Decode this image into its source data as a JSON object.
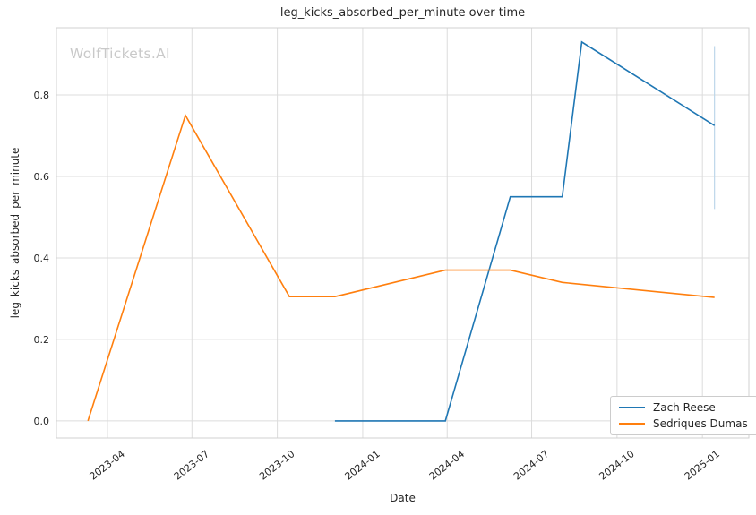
{
  "watermark": "WolfTickets.AI",
  "chart_data": {
    "type": "line",
    "title": "leg_kicks_absorbed_per_minute over time",
    "xlabel": "Date",
    "ylabel": "leg_kicks_absorbed_per_minute",
    "grid": true,
    "xlim": [
      "2023-02-05",
      "2025-02-20"
    ],
    "ylim": [
      -0.042,
      0.965
    ],
    "x_ticks": [
      {
        "label": "2023-04",
        "date": "2023-04-01"
      },
      {
        "label": "2023-07",
        "date": "2023-07-01"
      },
      {
        "label": "2023-10",
        "date": "2023-10-01"
      },
      {
        "label": "2024-01",
        "date": "2024-01-01"
      },
      {
        "label": "2024-04",
        "date": "2024-04-01"
      },
      {
        "label": "2024-07",
        "date": "2024-07-01"
      },
      {
        "label": "2024-10",
        "date": "2024-10-01"
      },
      {
        "label": "2025-01",
        "date": "2025-01-01"
      }
    ],
    "y_ticks": [
      0.0,
      0.2,
      0.4,
      0.6,
      0.8
    ],
    "y_tick_labels": [
      "0.0",
      "0.2",
      "0.4",
      "0.6",
      "0.8"
    ],
    "series": [
      {
        "name": "Zach Reese",
        "color": "#1f77b4",
        "points": [
          [
            "2023-12-02",
            0.0
          ],
          [
            "2024-03-30",
            0.0
          ],
          [
            "2024-06-08",
            0.55
          ],
          [
            "2024-08-03",
            0.55
          ],
          [
            "2024-08-24",
            0.93
          ],
          [
            "2025-01-14",
            0.725
          ]
        ]
      },
      {
        "name": "Sedriques Dumas",
        "color": "#ff7f0e",
        "points": [
          [
            "2023-03-11",
            0.0
          ],
          [
            "2023-06-24",
            0.75
          ],
          [
            "2023-10-14",
            0.305
          ],
          [
            "2023-12-02",
            0.305
          ],
          [
            "2024-03-30",
            0.37
          ],
          [
            "2024-06-08",
            0.37
          ],
          [
            "2024-08-03",
            0.34
          ],
          [
            "2025-01-14",
            0.303
          ]
        ]
      }
    ],
    "error_bars": [
      {
        "series": "Zach Reese",
        "date": "2025-01-14",
        "low": 0.52,
        "high": 0.92,
        "color": "#bdd7ea"
      }
    ],
    "legend": {
      "position": "lower right",
      "entries": [
        "Zach Reese",
        "Sedriques Dumas"
      ]
    },
    "colors": {
      "grid": "#dcdcdc",
      "spine": "#d0d0d0",
      "text": "#262626",
      "background": "#ffffff"
    }
  }
}
